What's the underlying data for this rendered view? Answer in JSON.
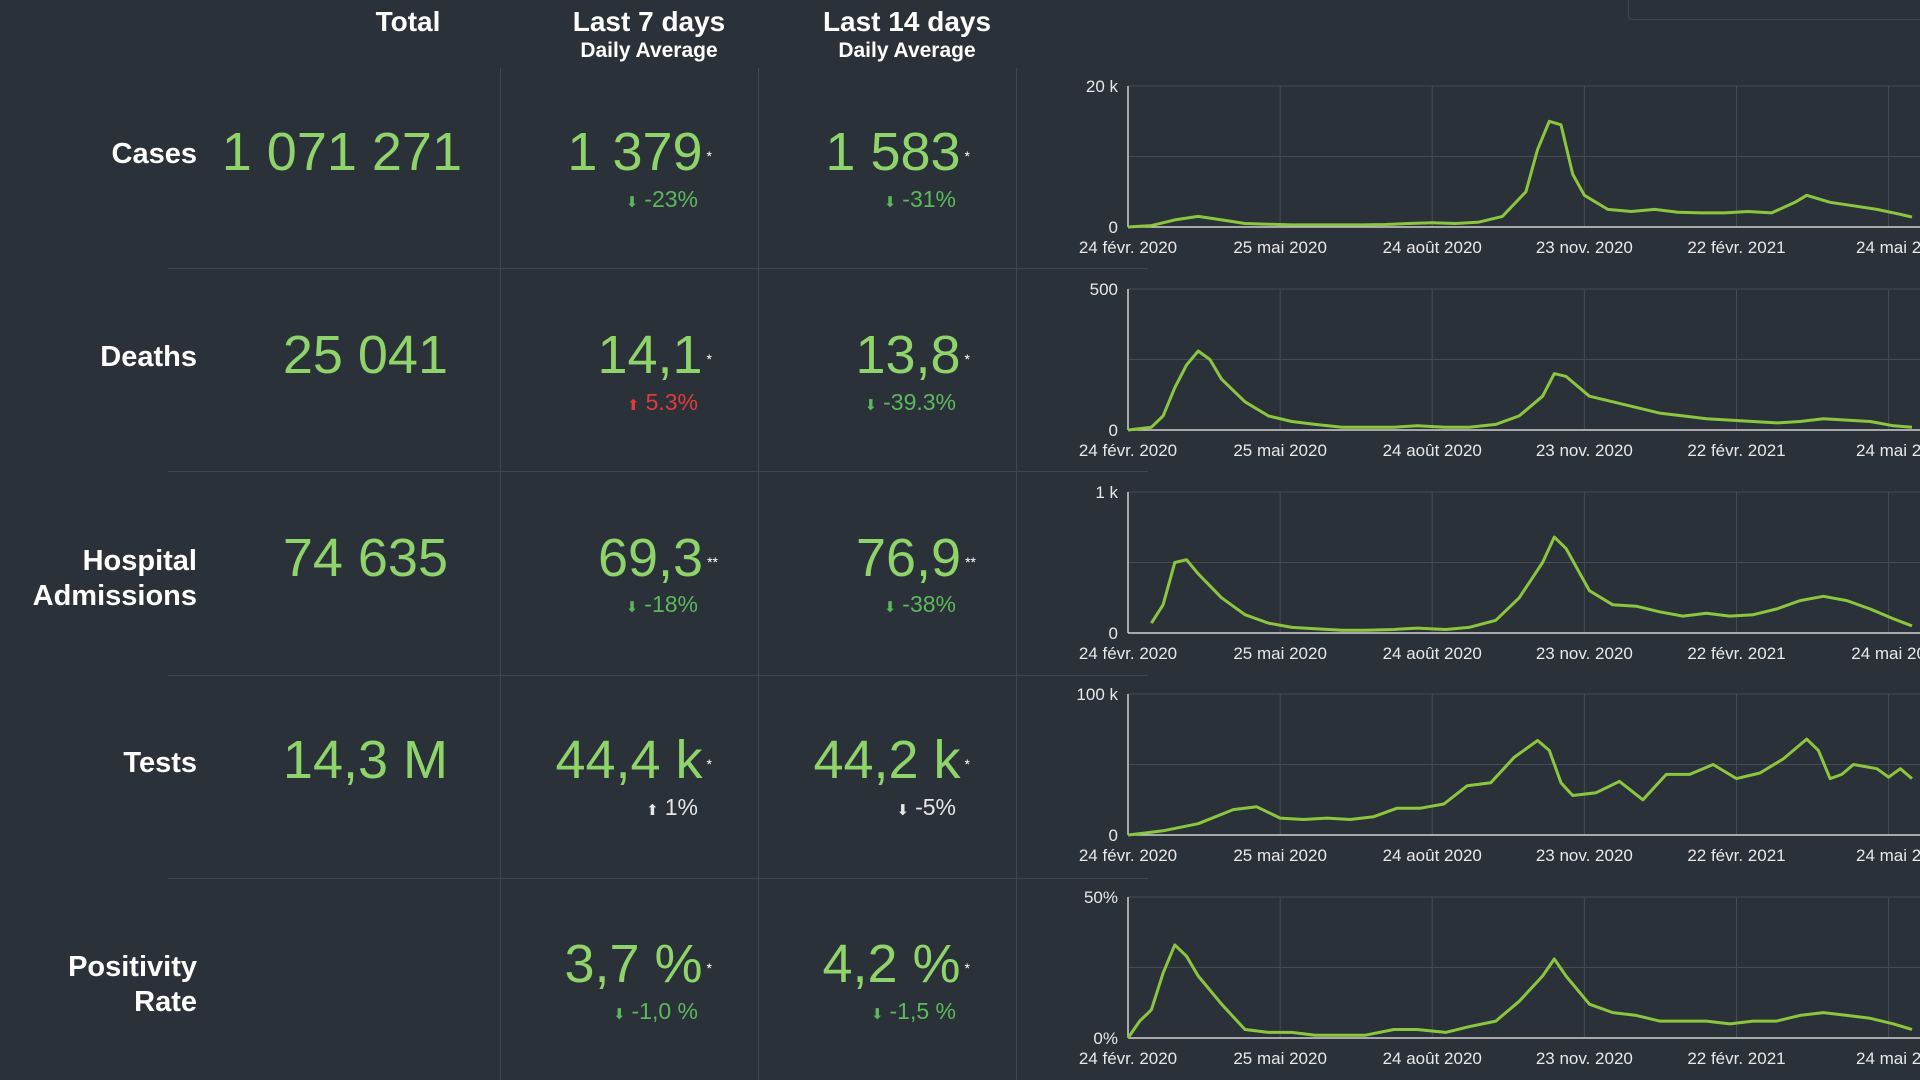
{
  "header": {
    "total": "Total",
    "last7": "Last 7 days",
    "last7_sub": "Daily Average",
    "last14": "Last 14 days",
    "last14_sub": "Daily Average"
  },
  "rows": [
    {
      "label": "Cases",
      "total": "1 071 271",
      "avg7": "1 379",
      "avg7_mark": "*",
      "chg7": "-23%",
      "dir7": "down",
      "avg14": "1 583",
      "avg14_mark": "*",
      "chg14": "-31%",
      "dir14": "down"
    },
    {
      "label": "Deaths",
      "total": "25 041",
      "avg7": "14,1",
      "avg7_mark": "*",
      "chg7": "5.3%",
      "dir7": "up-bad",
      "avg14": "13,8",
      "avg14_mark": "*",
      "chg14": "-39.3%",
      "dir14": "down"
    },
    {
      "label_line1": "Hospital",
      "label_line2": "Admissions",
      "total": "74 635",
      "avg7": "69,3",
      "avg7_mark": "**",
      "chg7": "-18%",
      "dir7": "down",
      "avg14": "76,9",
      "avg14_mark": "**",
      "chg14": "-38%",
      "dir14": "down"
    },
    {
      "label": "Tests",
      "total": "14,3 M",
      "avg7": "44,4 k",
      "avg7_mark": "*",
      "chg7": "1%",
      "dir7": "up-neutral",
      "avg14": "44,2 k",
      "avg14_mark": "*",
      "chg14": "-5%",
      "dir14": "down-neutral"
    },
    {
      "label": "Positivity Rate",
      "total": "",
      "avg7": "3,7 %",
      "avg7_mark": "*",
      "chg7": "-1,0 %",
      "dir7": "down",
      "avg14": "4,2 %",
      "avg14_mark": "*",
      "chg14": "-1,5 %",
      "dir14": "down"
    }
  ],
  "colors": {
    "background": "#2b3138",
    "value_green": "#8fd46a",
    "change_green": "#5cb85c",
    "change_red": "#e03c3c",
    "neutral": "#e6e6e6",
    "line": "#8cc63f",
    "grid": "#444c55"
  },
  "icons": {
    "down": "arrow-down-icon",
    "up": "arrow-up-icon"
  },
  "chart_data": [
    {
      "type": "line",
      "name": "cases",
      "ylim": [
        0,
        20000
      ],
      "ytick_labels": [
        "0",
        "20 k"
      ],
      "x_tick_labels": [
        "24 févr. 2020",
        "25 mai 2020",
        "24 août 2020",
        "23 nov. 2020",
        "22 févr. 2021",
        "24 mai 2"
      ],
      "x_range": [
        "2020-02-24",
        "2021-06-07"
      ],
      "x": [
        "2020-02-24",
        "2020-03-09",
        "2020-03-23",
        "2020-04-06",
        "2020-04-20",
        "2020-05-04",
        "2020-05-18",
        "2020-06-01",
        "2020-06-15",
        "2020-06-29",
        "2020-07-13",
        "2020-07-27",
        "2020-08-10",
        "2020-08-24",
        "2020-09-07",
        "2020-09-21",
        "2020-10-05",
        "2020-10-19",
        "2020-10-26",
        "2020-11-02",
        "2020-11-09",
        "2020-11-16",
        "2020-11-23",
        "2020-12-07",
        "2020-12-21",
        "2021-01-04",
        "2021-01-18",
        "2021-02-01",
        "2021-02-15",
        "2021-03-01",
        "2021-03-15",
        "2021-03-29",
        "2021-04-05",
        "2021-04-19",
        "2021-05-03",
        "2021-05-17",
        "2021-05-31",
        "2021-06-07"
      ],
      "values": [
        0,
        200,
        1000,
        1500,
        1000,
        500,
        400,
        300,
        300,
        300,
        300,
        350,
        500,
        600,
        500,
        700,
        1500,
        5000,
        11000,
        15000,
        14500,
        7500,
        4500,
        2500,
        2200,
        2500,
        2100,
        2000,
        2000,
        2200,
        2000,
        3500,
        4500,
        3500,
        3000,
        2500,
        1800,
        1400
      ]
    },
    {
      "type": "line",
      "name": "deaths",
      "ylim": [
        0,
        500
      ],
      "ytick_labels": [
        "0",
        "500"
      ],
      "x_tick_labels": [
        "24 févr. 2020",
        "25 mai 2020",
        "24 août 2020",
        "23 nov. 2020",
        "22 févr. 2021",
        "24 mai 2"
      ],
      "x_range": [
        "2020-02-24",
        "2021-06-07"
      ],
      "x": [
        "2020-02-24",
        "2020-03-09",
        "2020-03-16",
        "2020-03-23",
        "2020-03-30",
        "2020-04-06",
        "2020-04-13",
        "2020-04-20",
        "2020-05-04",
        "2020-05-18",
        "2020-06-01",
        "2020-06-15",
        "2020-07-01",
        "2020-07-15",
        "2020-08-01",
        "2020-08-15",
        "2020-09-01",
        "2020-09-15",
        "2020-10-01",
        "2020-10-15",
        "2020-10-29",
        "2020-11-05",
        "2020-11-12",
        "2020-11-26",
        "2020-12-10",
        "2020-12-24",
        "2021-01-07",
        "2021-01-21",
        "2021-02-04",
        "2021-02-18",
        "2021-03-04",
        "2021-03-18",
        "2021-04-01",
        "2021-04-15",
        "2021-04-29",
        "2021-05-13",
        "2021-05-27",
        "2021-06-07"
      ],
      "values": [
        0,
        10,
        50,
        150,
        230,
        280,
        250,
        180,
        100,
        50,
        30,
        20,
        10,
        10,
        10,
        15,
        10,
        10,
        20,
        50,
        120,
        200,
        190,
        120,
        100,
        80,
        60,
        50,
        40,
        35,
        30,
        25,
        30,
        40,
        35,
        30,
        15,
        10
      ]
    },
    {
      "type": "line",
      "name": "hospital_admissions",
      "ylim": [
        0,
        1000
      ],
      "ytick_labels": [
        "0",
        "1 k"
      ],
      "x_tick_labels": [
        "24 févr. 2020",
        "25 mai 2020",
        "24 août 2020",
        "23 nov. 2020",
        "22 févr. 2021",
        "24 mai 20"
      ],
      "x_range": [
        "2020-02-24",
        "2021-06-07"
      ],
      "x": [
        "2020-03-09",
        "2020-03-16",
        "2020-03-23",
        "2020-03-30",
        "2020-04-06",
        "2020-04-20",
        "2020-05-04",
        "2020-05-18",
        "2020-06-01",
        "2020-06-15",
        "2020-07-01",
        "2020-07-15",
        "2020-08-01",
        "2020-08-15",
        "2020-09-01",
        "2020-09-15",
        "2020-10-01",
        "2020-10-15",
        "2020-10-29",
        "2020-11-05",
        "2020-11-12",
        "2020-11-26",
        "2020-12-10",
        "2020-12-24",
        "2021-01-07",
        "2021-01-21",
        "2021-02-04",
        "2021-02-18",
        "2021-03-04",
        "2021-03-18",
        "2021-04-01",
        "2021-04-15",
        "2021-04-29",
        "2021-05-13",
        "2021-05-27",
        "2021-06-07"
      ],
      "values": [
        70,
        200,
        500,
        520,
        420,
        250,
        130,
        70,
        40,
        30,
        20,
        20,
        25,
        35,
        25,
        40,
        90,
        250,
        500,
        680,
        600,
        300,
        200,
        190,
        150,
        120,
        140,
        120,
        130,
        170,
        230,
        260,
        230,
        170,
        100,
        50
      ]
    },
    {
      "type": "line",
      "name": "tests",
      "ylim": [
        0,
        100000
      ],
      "ytick_labels": [
        "0",
        "100 k"
      ],
      "x_tick_labels": [
        "24 févr. 2020",
        "25 mai 2020",
        "24 août 2020",
        "23 nov. 2020",
        "22 févr. 2021",
        "24 mai 2"
      ],
      "x_range": [
        "2020-02-24",
        "2021-06-07"
      ],
      "x": [
        "2020-02-24",
        "2020-03-16",
        "2020-04-06",
        "2020-04-27",
        "2020-05-11",
        "2020-05-25",
        "2020-06-08",
        "2020-06-22",
        "2020-07-06",
        "2020-07-20",
        "2020-08-03",
        "2020-08-17",
        "2020-08-31",
        "2020-09-14",
        "2020-09-28",
        "2020-10-12",
        "2020-10-26",
        "2020-11-02",
        "2020-11-09",
        "2020-11-16",
        "2020-11-30",
        "2020-12-14",
        "2020-12-28",
        "2021-01-11",
        "2021-01-25",
        "2021-02-08",
        "2021-02-22",
        "2021-03-08",
        "2021-03-22",
        "2021-04-05",
        "2021-04-12",
        "2021-04-19",
        "2021-04-26",
        "2021-05-03",
        "2021-05-17",
        "2021-05-24",
        "2021-05-31",
        "2021-06-07"
      ],
      "values": [
        0,
        3000,
        8000,
        18000,
        20000,
        12000,
        11000,
        12000,
        11000,
        13000,
        19000,
        19000,
        22000,
        35000,
        37000,
        55000,
        67000,
        60000,
        37000,
        28000,
        30000,
        38000,
        25000,
        43000,
        43000,
        50000,
        40000,
        44000,
        54000,
        68000,
        60000,
        40000,
        43000,
        50000,
        47000,
        41000,
        47000,
        40000
      ]
    },
    {
      "type": "line",
      "name": "positivity_rate",
      "ylim": [
        0,
        50
      ],
      "ytick_labels": [
        "0%",
        "50%"
      ],
      "x_tick_labels": [
        "24 févr. 2020",
        "25 mai 2020",
        "24 août 2020",
        "23 nov. 2020",
        "22 févr. 2021",
        "24 mai 2"
      ],
      "x_range": [
        "2020-02-24",
        "2021-06-07"
      ],
      "x": [
        "2020-02-24",
        "2020-03-02",
        "2020-03-09",
        "2020-03-16",
        "2020-03-23",
        "2020-03-30",
        "2020-04-06",
        "2020-04-20",
        "2020-05-04",
        "2020-05-18",
        "2020-06-01",
        "2020-06-15",
        "2020-07-01",
        "2020-07-15",
        "2020-08-01",
        "2020-08-15",
        "2020-09-01",
        "2020-09-15",
        "2020-10-01",
        "2020-10-15",
        "2020-10-29",
        "2020-11-05",
        "2020-11-12",
        "2020-11-26",
        "2020-12-10",
        "2020-12-24",
        "2021-01-07",
        "2021-01-21",
        "2021-02-04",
        "2021-02-18",
        "2021-03-04",
        "2021-03-18",
        "2021-04-01",
        "2021-04-15",
        "2021-04-29",
        "2021-05-13",
        "2021-05-27",
        "2021-06-07"
      ],
      "values": [
        0,
        6,
        10,
        23,
        33,
        29,
        22,
        12,
        3,
        2,
        2,
        1,
        1,
        1,
        3,
        3,
        2,
        4,
        6,
        13,
        22,
        28,
        22,
        12,
        9,
        8,
        6,
        6,
        6,
        5,
        6,
        6,
        8,
        9,
        8,
        7,
        5,
        3
      ]
    }
  ]
}
